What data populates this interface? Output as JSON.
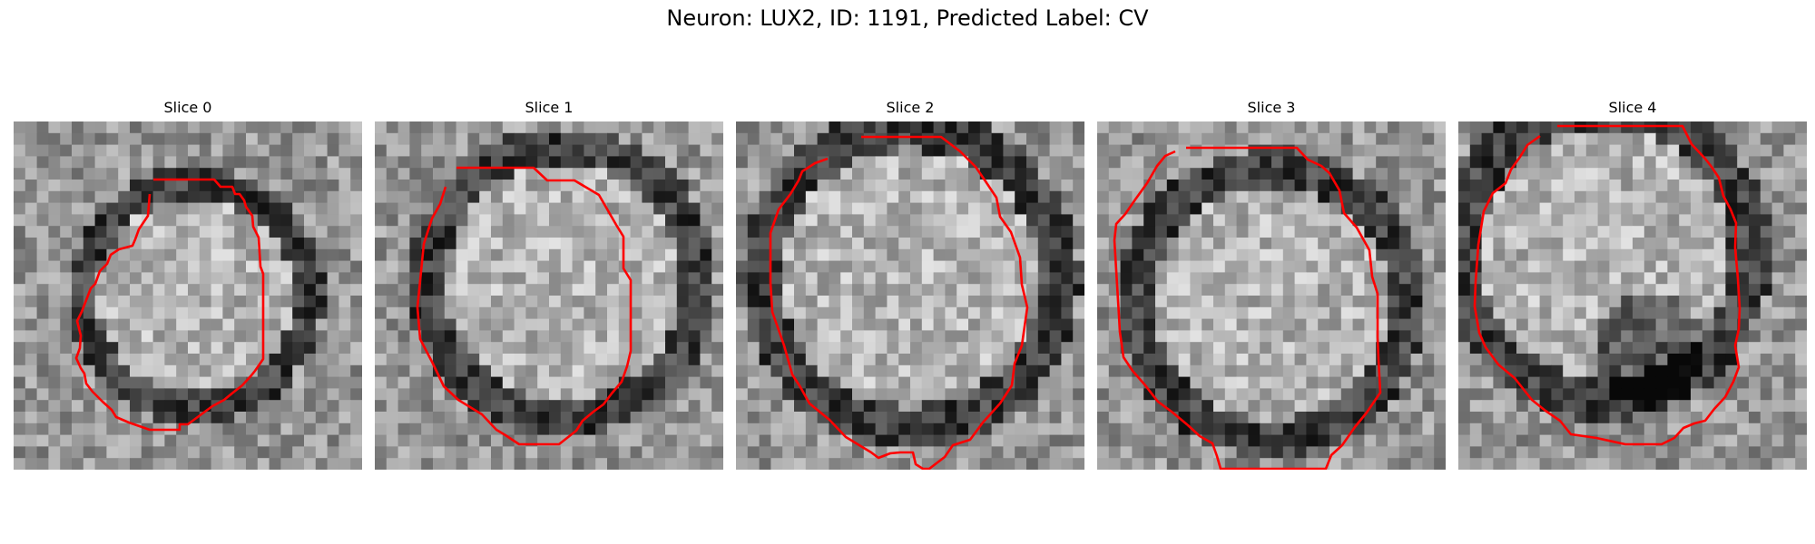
{
  "figure": {
    "title": "Neuron: LUX2, ID: 1191, Predicted Label: CV",
    "outline_color": "#ff0000",
    "colormap": "grayscale",
    "slices": [
      {
        "title": "Slice 0",
        "spot": [
          0.52,
          0.5
        ],
        "ring": 0.34
      },
      {
        "title": "Slice 1",
        "spot": [
          0.54,
          0.46
        ],
        "ring": 0.41
      },
      {
        "title": "Slice 2",
        "spot": [
          0.5,
          0.45
        ],
        "ring": 0.45
      },
      {
        "title": "Slice 3",
        "spot": [
          0.5,
          0.52
        ],
        "ring": 0.41
      },
      {
        "title": "Slice 4",
        "spot": [
          0.42,
          0.38
        ],
        "ring": 0.44
      }
    ]
  }
}
